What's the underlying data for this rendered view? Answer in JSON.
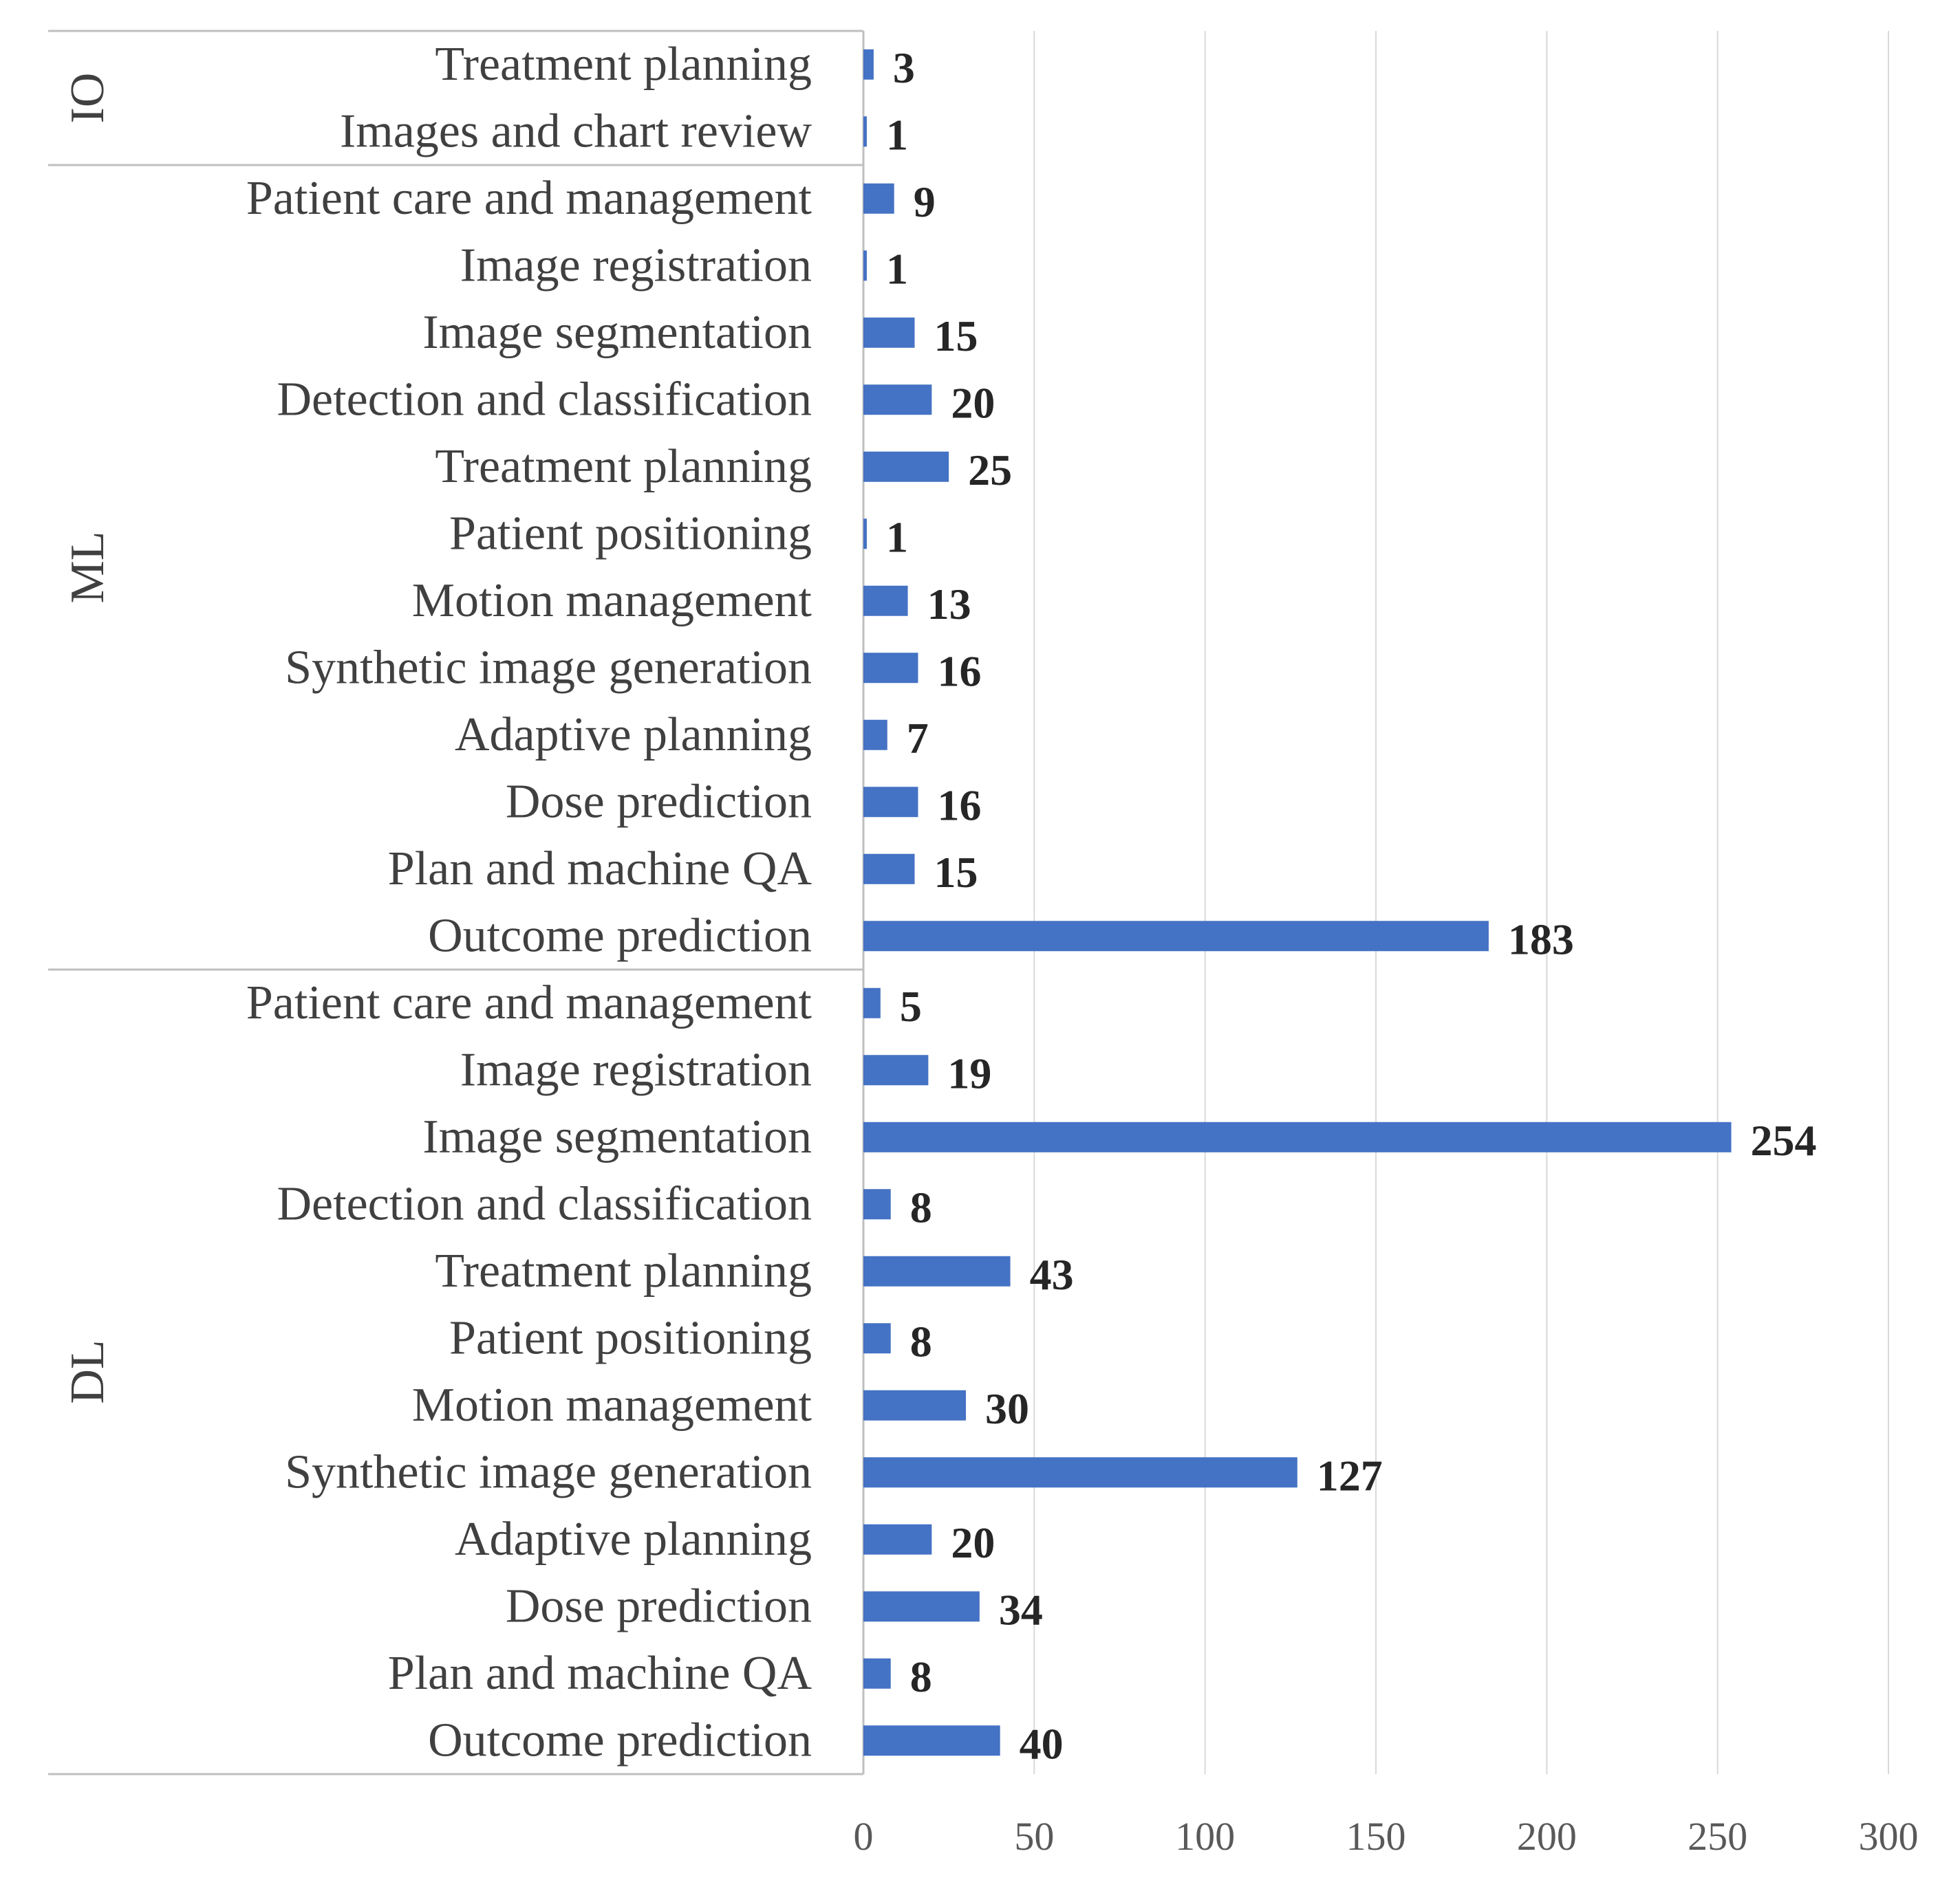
{
  "chart_data": {
    "type": "bar",
    "orientation": "horizontal",
    "title": "",
    "xlabel": "",
    "ylabel": "",
    "xlim": [
      0,
      300
    ],
    "xticks": [
      0,
      50,
      100,
      150,
      200,
      250,
      300
    ],
    "grid": true,
    "bar_color": "#4472C4",
    "groups": [
      {
        "name": "IO",
        "categories": [
          "Treatment planning",
          "Images and chart review"
        ],
        "values": [
          3,
          1
        ]
      },
      {
        "name": "ML",
        "categories": [
          "Patient care and management",
          "Image registration",
          "Image segmentation",
          "Detection and classification",
          "Treatment planning",
          "Patient positioning",
          "Motion management",
          "Synthetic image generation",
          "Adaptive planning",
          "Dose prediction",
          "Plan and machine QA",
          "Outcome prediction"
        ],
        "values": [
          9,
          1,
          15,
          20,
          25,
          1,
          13,
          16,
          7,
          16,
          15,
          183
        ]
      },
      {
        "name": "DL",
        "categories": [
          "Patient care and management",
          "Image registration",
          "Image segmentation",
          "Detection and classification",
          "Treatment planning",
          "Patient positioning",
          "Motion management",
          "Synthetic image generation",
          "Adaptive planning",
          "Dose prediction",
          "Plan and machine QA",
          "Outcome prediction"
        ],
        "values": [
          5,
          19,
          254,
          8,
          43,
          8,
          30,
          127,
          20,
          34,
          8,
          40
        ]
      }
    ]
  }
}
